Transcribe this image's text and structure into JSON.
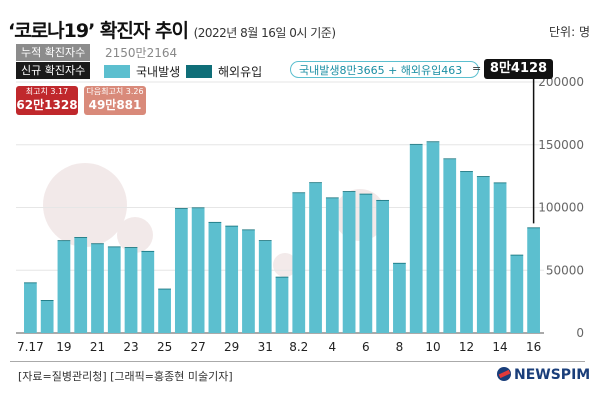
{
  "header": {
    "title": "‘코로나19’ 확진자 추이",
    "subtitle": "(2022년 8월 16일 0시 기준)",
    "unit": "단위: 명"
  },
  "cumulative": {
    "label": "누적 확진자수",
    "value": "2150만2164"
  },
  "new_cases_label": "신규 확진자수",
  "legend": {
    "domestic": "국내발생",
    "imported": "해외유입"
  },
  "breakdown": {
    "text": "국내발생8만3665 + 해외유입463",
    "equals": "=",
    "total": "8만4128"
  },
  "peaks": [
    {
      "label": "최고치 3.17",
      "value": "62만1328"
    },
    {
      "label": "다음최고치 3.26",
      "value": "49만881"
    }
  ],
  "colors": {
    "domestic": "#5cbfcf",
    "imported": "#0f6e78",
    "peak1": "#c0282c",
    "peak2": "#d98a7a"
  },
  "footer": {
    "source": "[자료=질병관리청] [그래픽=홍종현 미술기자]",
    "logo": "NEWSPIM"
  },
  "chart_data": {
    "type": "bar",
    "title": "‘코로나19’ 확진자 추이",
    "ylim": [
      0,
      200000
    ],
    "yticks": [
      0,
      50000,
      100000,
      150000,
      200000
    ],
    "ytick_labels": [
      "0",
      "50000",
      "100000",
      "150000",
      "200000"
    ],
    "categories": [
      "7.17",
      "7.18",
      "7.19",
      "7.20",
      "7.21",
      "7.22",
      "7.23",
      "7.24",
      "7.25",
      "7.26",
      "7.27",
      "7.28",
      "7.29",
      "7.30",
      "7.31",
      "8.1",
      "8.2",
      "8.3",
      "8.4",
      "8.5",
      "8.6",
      "8.7",
      "8.8",
      "8.9",
      "8.10",
      "8.11",
      "8.12",
      "8.13",
      "8.14",
      "8.15",
      "8.16"
    ],
    "xtick_labels": [
      "7.17",
      "",
      "19",
      "",
      "21",
      "",
      "23",
      "",
      "25",
      "",
      "27",
      "",
      "29",
      "",
      "31",
      "",
      "8.2",
      "",
      "4",
      "",
      "6",
      "",
      "8",
      "",
      "10",
      "",
      "12",
      "",
      "14",
      "",
      "16"
    ],
    "series": [
      {
        "name": "국내발생",
        "values": [
          40000,
          26000,
          73500,
          76000,
          71000,
          68500,
          68000,
          65000,
          35000,
          99000,
          99500,
          88000,
          85000,
          82000,
          73500,
          44500,
          111500,
          119500,
          107500,
          112500,
          110500,
          105500,
          55500,
          150000,
          152000,
          138500,
          128500,
          124500,
          119500,
          62000,
          83665
        ]
      },
      {
        "name": "해외유입",
        "values": [
          300,
          250,
          400,
          450,
          450,
          450,
          450,
          400,
          350,
          550,
          550,
          500,
          500,
          500,
          450,
          350,
          550,
          600,
          500,
          550,
          500,
          500,
          400,
          650,
          700,
          600,
          550,
          500,
          450,
          400,
          463
        ]
      }
    ],
    "annotation": {
      "date": "8.16",
      "total": 84128
    }
  }
}
